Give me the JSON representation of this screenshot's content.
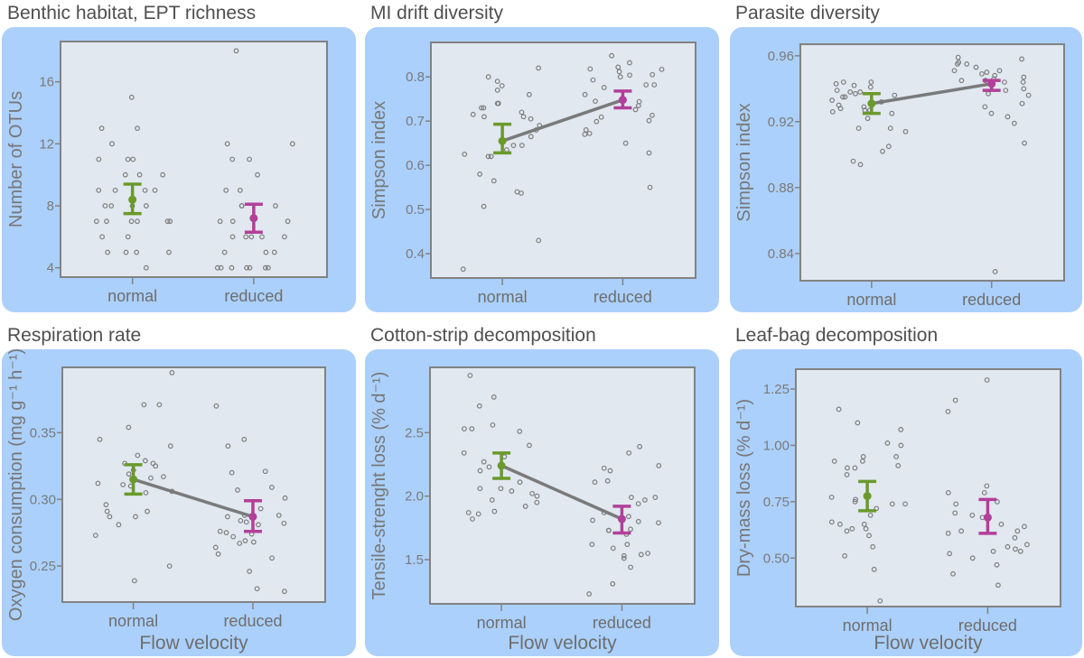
{
  "colors": {
    "card": "#abd0fb",
    "plot_bg": "#e1e8f0",
    "frame": "#828282",
    "normal": "#6a9a2a",
    "reduced": "#b23f99",
    "mean_line": "#7a7a7a",
    "points": "#7d7d7d"
  },
  "chart_data": [
    {
      "type": "scatter",
      "title": "Benthic habitat, EPT richness",
      "ylabel": "Number of OTUs",
      "xlabel": "",
      "categories": [
        "normal",
        "reduced"
      ],
      "ylim": [
        3.4,
        18.6
      ],
      "yticks": [
        4,
        8,
        12,
        16
      ],
      "ytick_labels": [
        "4",
        "8",
        "12",
        "16"
      ],
      "connect_means": false,
      "series": [
        {
          "category": "normal",
          "mean": 8.4,
          "ci": [
            7.5,
            9.4
          ],
          "points": [
            15,
            13,
            13,
            12,
            11,
            11,
            11,
            10,
            10,
            10,
            9,
            9,
            9,
            9,
            8,
            8,
            8,
            8,
            7,
            7,
            7,
            7,
            7,
            7,
            6,
            6,
            5,
            5,
            5,
            5,
            4
          ]
        },
        {
          "category": "reduced",
          "mean": 7.2,
          "ci": [
            6.3,
            8.1
          ],
          "points": [
            18,
            12,
            12,
            11,
            11,
            10,
            9,
            9,
            8,
            8,
            8,
            7,
            7,
            7,
            6,
            6,
            6,
            6,
            6,
            5,
            5,
            5,
            4,
            4,
            4,
            4,
            4,
            4,
            4
          ]
        }
      ]
    },
    {
      "type": "scatter",
      "title": "MI drift diversity",
      "ylabel": "Simpson index",
      "xlabel": "",
      "categories": [
        "normal",
        "reduced"
      ],
      "ylim": [
        0.345,
        0.878
      ],
      "yticks": [
        0.4,
        0.5,
        0.6,
        0.7,
        0.8
      ],
      "ytick_labels": [
        "0.4",
        "0.5",
        "0.6",
        "0.7",
        "0.8"
      ],
      "connect_means": true,
      "series": [
        {
          "category": "normal",
          "mean": 0.655,
          "ci": [
            0.628,
            0.693
          ],
          "points": [
            0.82,
            0.8,
            0.79,
            0.78,
            0.77,
            0.76,
            0.74,
            0.74,
            0.73,
            0.73,
            0.72,
            0.715,
            0.71,
            0.71,
            0.705,
            0.69,
            0.68,
            0.665,
            0.645,
            0.645,
            0.635,
            0.625,
            0.62,
            0.62,
            0.58,
            0.565,
            0.54,
            0.537,
            0.507,
            0.43,
            0.365
          ]
        },
        {
          "category": "reduced",
          "mean": 0.748,
          "ci": [
            0.73,
            0.768
          ],
          "points": [
            0.848,
            0.832,
            0.822,
            0.818,
            0.817,
            0.812,
            0.805,
            0.804,
            0.8,
            0.793,
            0.782,
            0.782,
            0.776,
            0.76,
            0.745,
            0.744,
            0.735,
            0.726,
            0.713,
            0.709,
            0.701,
            0.699,
            0.68,
            0.672,
            0.67,
            0.65,
            0.628,
            0.55
          ]
        }
      ]
    },
    {
      "type": "scatter",
      "title": "Parasite diversity",
      "ylabel": "Simpson index",
      "xlabel": "",
      "categories": [
        "normal",
        "reduced"
      ],
      "ylim": [
        0.8235,
        0.967
      ],
      "yticks": [
        0.84,
        0.88,
        0.92,
        0.96
      ],
      "ytick_labels": [
        "0.84",
        "0.88",
        "0.92",
        "0.96"
      ],
      "connect_means": true,
      "series": [
        {
          "category": "normal",
          "mean": 0.931,
          "ci": [
            0.925,
            0.937
          ],
          "points": [
            0.944,
            0.944,
            0.943,
            0.942,
            0.941,
            0.939,
            0.938,
            0.938,
            0.937,
            0.936,
            0.935,
            0.935,
            0.933,
            0.932,
            0.93,
            0.929,
            0.928,
            0.927,
            0.927,
            0.926,
            0.925,
            0.922,
            0.916,
            0.916,
            0.914,
            0.905,
            0.902,
            0.896,
            0.894
          ]
        },
        {
          "category": "reduced",
          "mean": 0.943,
          "ci": [
            0.939,
            0.945
          ],
          "points": [
            0.959,
            0.958,
            0.956,
            0.955,
            0.955,
            0.953,
            0.951,
            0.951,
            0.95,
            0.949,
            0.948,
            0.947,
            0.946,
            0.945,
            0.945,
            0.944,
            0.944,
            0.943,
            0.94,
            0.939,
            0.937,
            0.936,
            0.931,
            0.929,
            0.925,
            0.923,
            0.919,
            0.907,
            0.829
          ]
        }
      ]
    },
    {
      "type": "scatter",
      "title": "Respiration rate",
      "ylabel": "Oxygen consumption (mg g⁻¹ h⁻¹)",
      "xlabel": "Flow velocity",
      "categories": [
        "normal",
        "reduced"
      ],
      "ylim": [
        0.223,
        0.399
      ],
      "yticks": [
        0.25,
        0.3,
        0.35
      ],
      "ytick_labels": [
        "0.25",
        "0.30",
        "0.35"
      ],
      "connect_means": true,
      "series": [
        {
          "category": "normal",
          "mean": 0.315,
          "ci": [
            0.304,
            0.326
          ],
          "points": [
            0.395,
            0.371,
            0.371,
            0.354,
            0.345,
            0.34,
            0.333,
            0.329,
            0.327,
            0.327,
            0.325,
            0.322,
            0.319,
            0.317,
            0.316,
            0.312,
            0.311,
            0.31,
            0.306,
            0.305,
            0.296,
            0.291,
            0.291,
            0.287,
            0.287,
            0.281,
            0.273,
            0.25,
            0.239
          ]
        },
        {
          "category": "reduced",
          "mean": 0.287,
          "ci": [
            0.276,
            0.299
          ],
          "points": [
            0.37,
            0.345,
            0.34,
            0.321,
            0.32,
            0.309,
            0.307,
            0.301,
            0.293,
            0.288,
            0.288,
            0.287,
            0.284,
            0.283,
            0.282,
            0.281,
            0.276,
            0.275,
            0.274,
            0.272,
            0.269,
            0.268,
            0.267,
            0.264,
            0.259,
            0.256,
            0.246,
            0.233,
            0.231
          ]
        }
      ]
    },
    {
      "type": "scatter",
      "title": "Cotton-strip decomposition",
      "ylabel": "Tensile-strenght loss (% d⁻¹)",
      "xlabel": "Flow velocity",
      "categories": [
        "normal",
        "reduced"
      ],
      "ylim": [
        1.152,
        3.014
      ],
      "yticks": [
        1.5,
        2.0,
        2.5
      ],
      "ytick_labels": [
        "1.5",
        "2.0",
        "2.5"
      ],
      "connect_means": true,
      "series": [
        {
          "category": "normal",
          "mean": 2.24,
          "ci": [
            2.14,
            2.34
          ],
          "points": [
            2.95,
            2.78,
            2.71,
            2.56,
            2.53,
            2.53,
            2.51,
            2.4,
            2.34,
            2.31,
            2.27,
            2.23,
            2.2,
            2.11,
            2.06,
            2.06,
            2.04,
            2.02,
            2.0,
            1.97,
            1.95,
            1.92,
            1.88,
            1.87,
            1.86,
            1.82
          ]
        },
        {
          "category": "reduced",
          "mean": 1.82,
          "ci": [
            1.71,
            1.92
          ],
          "points": [
            2.39,
            2.34,
            2.24,
            2.22,
            2.2,
            2.12,
            2.11,
            1.99,
            1.99,
            1.97,
            1.94,
            1.87,
            1.84,
            1.81,
            1.8,
            1.79,
            1.74,
            1.73,
            1.73,
            1.7,
            1.62,
            1.62,
            1.59,
            1.55,
            1.54,
            1.53,
            1.51,
            1.44,
            1.31,
            1.23
          ]
        }
      ]
    },
    {
      "type": "scatter",
      "title": "Leaf-bag decomposition",
      "ylabel": "Dry-mass loss (% d⁻¹)",
      "xlabel": "Flow velocity",
      "categories": [
        "normal",
        "reduced"
      ],
      "ylim": [
        0.285,
        1.338
      ],
      "yticks": [
        0.5,
        0.75,
        1.0,
        1.25
      ],
      "ytick_labels": [
        "0.50",
        "0.75",
        "1.00",
        "1.25"
      ],
      "connect_means": false,
      "series": [
        {
          "category": "normal",
          "mean": 0.775,
          "ci": [
            0.71,
            0.84
          ],
          "points": [
            1.16,
            1.1,
            1.07,
            1.01,
            1.0,
            0.95,
            0.95,
            0.93,
            0.93,
            0.91,
            0.9,
            0.9,
            0.87,
            0.77,
            0.76,
            0.75,
            0.74,
            0.74,
            0.72,
            0.69,
            0.66,
            0.65,
            0.65,
            0.63,
            0.63,
            0.62,
            0.6,
            0.55,
            0.51,
            0.45,
            0.31
          ]
        },
        {
          "category": "reduced",
          "mean": 0.68,
          "ci": [
            0.61,
            0.76
          ],
          "points": [
            1.29,
            1.2,
            1.15,
            0.82,
            0.79,
            0.79,
            0.75,
            0.74,
            0.7,
            0.69,
            0.68,
            0.65,
            0.64,
            0.62,
            0.62,
            0.61,
            0.59,
            0.56,
            0.54,
            0.55,
            0.53,
            0.53,
            0.52,
            0.5,
            0.47,
            0.43,
            0.38
          ]
        }
      ]
    }
  ]
}
